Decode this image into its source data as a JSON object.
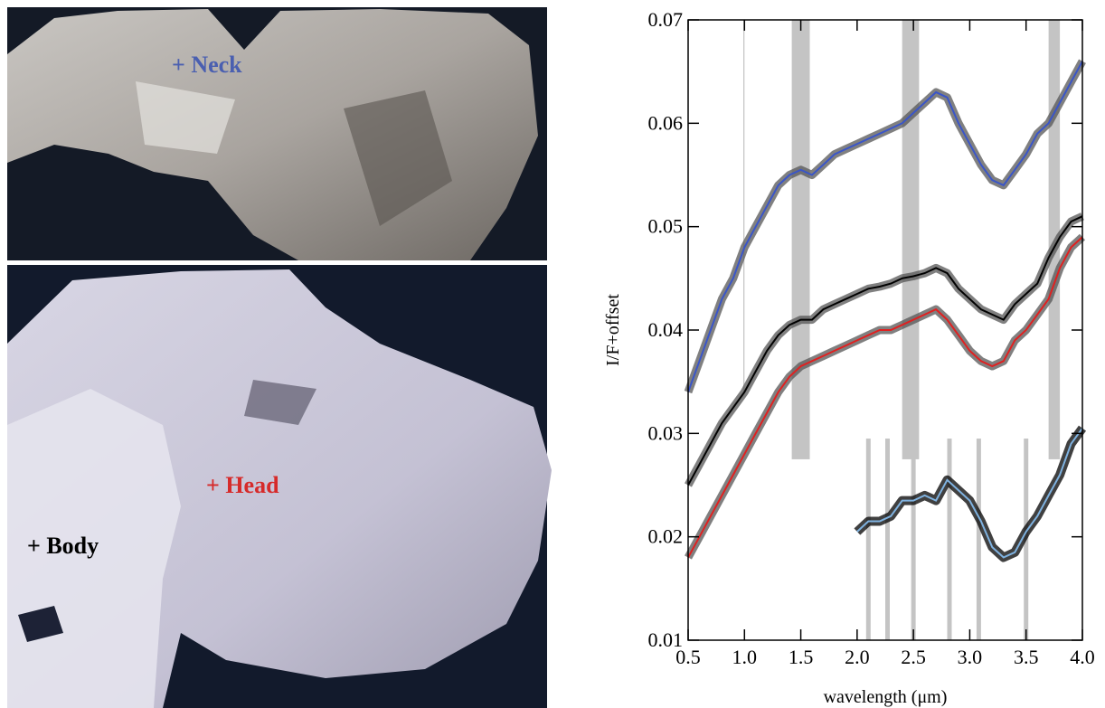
{
  "photo_labels": [
    "+ Neck",
    "+ Head",
    "+ Body"
  ],
  "chart_data": {
    "type": "line",
    "xlabel": "wavelength (μm)",
    "ylabel": "I/F+offset",
    "xlim": [
      0.5,
      4.0
    ],
    "ylim": [
      0.01,
      0.07
    ],
    "xticks": [
      0.5,
      {
        "value": 1,
        "label": "1.0"
      },
      1.5,
      {
        "value": 2,
        "label": "2.0"
      },
      2.5,
      {
        "value": 3,
        "label": "3.0"
      },
      3.5,
      {
        "value": 4,
        "label": "4.0"
      }
    ],
    "yticks": [
      0.01,
      0.02,
      0.03,
      0.04,
      0.05,
      0.06,
      0.07
    ],
    "bands": [
      {
        "x": [
          1.42,
          1.58
        ],
        "y": [
          0.0275,
          0.07
        ]
      },
      {
        "x": [
          2.4,
          2.55
        ],
        "y": [
          0.0275,
          0.07
        ]
      },
      {
        "x": [
          3.7,
          3.8
        ],
        "y": [
          0.0275,
          0.07
        ]
      },
      {
        "x": [
          0.99,
          1.0
        ],
        "y": [
          0.034,
          0.07
        ]
      },
      {
        "x": [
          2.08,
          2.12
        ],
        "y": [
          0.01,
          0.0295
        ]
      },
      {
        "x": [
          2.25,
          2.29
        ],
        "y": [
          0.01,
          0.0295
        ]
      },
      {
        "x": [
          2.48,
          2.52
        ],
        "y": [
          0.01,
          0.0295
        ]
      },
      {
        "x": [
          2.8,
          2.84
        ],
        "y": [
          0.01,
          0.0295
        ]
      },
      {
        "x": [
          3.06,
          3.1
        ],
        "y": [
          0.01,
          0.0295
        ]
      },
      {
        "x": [
          3.48,
          3.52
        ],
        "y": [
          0.01,
          0.0295
        ]
      }
    ],
    "series": [
      {
        "color": "#3a55c8",
        "x": [
          0.5,
          0.6,
          0.7,
          0.8,
          0.9,
          1.0,
          1.1,
          1.2,
          1.3,
          1.4,
          1.5,
          1.6,
          1.7,
          1.8,
          1.9,
          2.0,
          2.1,
          2.2,
          2.3,
          2.4,
          2.5,
          2.6,
          2.7,
          2.8,
          2.9,
          3.0,
          3.1,
          3.2,
          3.3,
          3.4,
          3.5,
          3.6,
          3.7,
          3.8,
          3.9,
          4.0
        ],
        "values": [
          0.034,
          0.037,
          0.04,
          0.043,
          0.045,
          0.048,
          0.05,
          0.052,
          0.054,
          0.055,
          0.0555,
          0.055,
          0.056,
          0.057,
          0.0575,
          0.058,
          0.0585,
          0.059,
          0.0595,
          0.06,
          0.061,
          0.062,
          0.063,
          0.0625,
          0.06,
          0.058,
          0.056,
          0.0545,
          0.054,
          0.0555,
          0.057,
          0.059,
          0.06,
          0.062,
          0.064,
          0.066
        ]
      },
      {
        "color": "#000000",
        "x": [
          0.5,
          0.6,
          0.7,
          0.8,
          0.9,
          1.0,
          1.1,
          1.2,
          1.3,
          1.4,
          1.5,
          1.6,
          1.7,
          1.8,
          1.9,
          2.0,
          2.1,
          2.2,
          2.3,
          2.4,
          2.5,
          2.6,
          2.7,
          2.8,
          2.9,
          3.0,
          3.1,
          3.2,
          3.3,
          3.4,
          3.5,
          3.6,
          3.7,
          3.8,
          3.9,
          4.0
        ],
        "values": [
          0.025,
          0.027,
          0.029,
          0.031,
          0.0325,
          0.034,
          0.036,
          0.038,
          0.0395,
          0.0405,
          0.041,
          0.041,
          0.042,
          0.0425,
          0.043,
          0.0435,
          0.044,
          0.0442,
          0.0445,
          0.045,
          0.0452,
          0.0455,
          0.046,
          0.0455,
          0.044,
          0.043,
          0.042,
          0.0415,
          0.041,
          0.0425,
          0.0435,
          0.0445,
          0.047,
          0.049,
          0.0505,
          0.051
        ]
      },
      {
        "color": "#e02020",
        "x": [
          0.5,
          0.6,
          0.7,
          0.8,
          0.9,
          1.0,
          1.1,
          1.2,
          1.3,
          1.4,
          1.5,
          1.6,
          1.7,
          1.8,
          1.9,
          2.0,
          2.1,
          2.2,
          2.3,
          2.4,
          2.5,
          2.6,
          2.7,
          2.8,
          2.9,
          3.0,
          3.1,
          3.2,
          3.3,
          3.4,
          3.5,
          3.6,
          3.7,
          3.8,
          3.9,
          4.0
        ],
        "values": [
          0.018,
          0.02,
          0.022,
          0.024,
          0.026,
          0.028,
          0.03,
          0.032,
          0.034,
          0.0355,
          0.0365,
          0.037,
          0.0375,
          0.038,
          0.0385,
          0.039,
          0.0395,
          0.04,
          0.04,
          0.0405,
          0.041,
          0.0415,
          0.042,
          0.041,
          0.0395,
          0.038,
          0.037,
          0.0365,
          0.037,
          0.039,
          0.04,
          0.0415,
          0.043,
          0.046,
          0.048,
          0.049
        ]
      },
      {
        "color": "#7fb2e0",
        "x": [
          2.0,
          2.1,
          2.2,
          2.3,
          2.4,
          2.5,
          2.6,
          2.7,
          2.8,
          2.9,
          3.0,
          3.1,
          3.2,
          3.3,
          3.4,
          3.5,
          3.6,
          3.7,
          3.8,
          3.9,
          4.0
        ],
        "values": [
          0.0205,
          0.0215,
          0.0215,
          0.022,
          0.0235,
          0.0235,
          0.024,
          0.0235,
          0.0255,
          0.0245,
          0.0235,
          0.0215,
          0.019,
          0.018,
          0.0185,
          0.0205,
          0.022,
          0.024,
          0.026,
          0.029,
          0.0305
        ]
      }
    ]
  }
}
